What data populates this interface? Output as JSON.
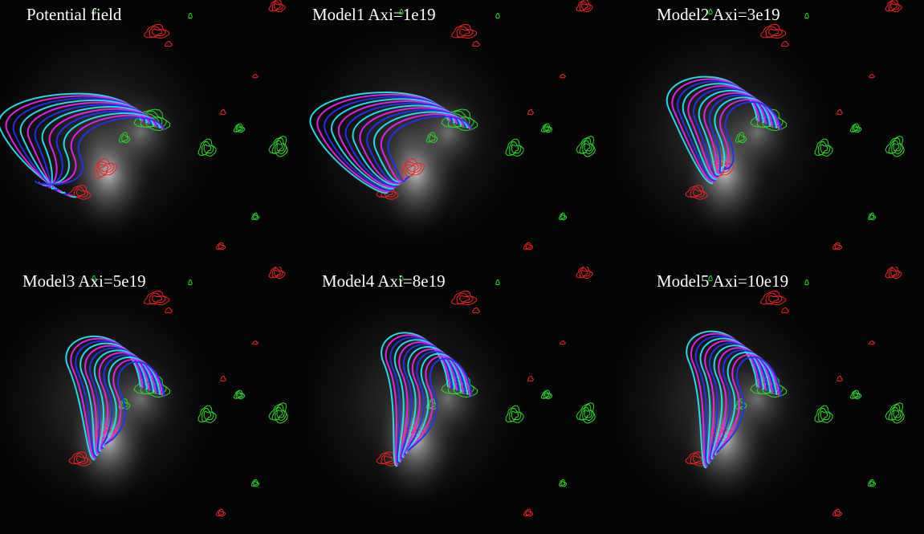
{
  "figure": {
    "panels": [
      {
        "id": "potential-field",
        "title": "Potential field",
        "model": "potential",
        "axi_value": 0
      },
      {
        "id": "model1",
        "title": "Model1 Axi=1e19",
        "model": "Model1",
        "axi_value": 1e+19
      },
      {
        "id": "model2",
        "title": "Model2 Axi=3e19",
        "model": "Model2",
        "axi_value": 3e+19
      },
      {
        "id": "model3",
        "title": "Model3 Axi=5e19",
        "model": "Model3",
        "axi_value": 5e+19
      },
      {
        "id": "model4",
        "title": "Model4 Axi=8e19",
        "model": "Model4",
        "axi_value": 8e+19
      },
      {
        "id": "model5",
        "title": "Model5 Axi=10e19",
        "model": "Model5",
        "axi_value": 1e+20
      }
    ],
    "colors": {
      "positive_contour": "#22dd22",
      "negative_contour": "#ee2222",
      "field_line_cyan": "#22e6f0",
      "field_line_magenta": "#ee22ee",
      "field_line_blue": "#2233ee",
      "background": "#000000"
    }
  }
}
